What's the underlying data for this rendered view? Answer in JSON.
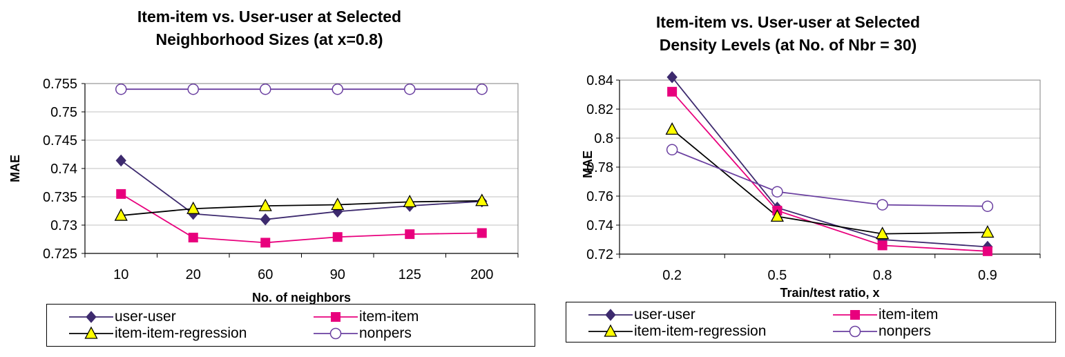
{
  "charts": [
    {
      "title": "Item-item vs. User-user at Selected\nNeighborhood Sizes (at x=0.8)",
      "legend": [
        "user-user",
        "item-item",
        "item-item-regression",
        "nonpers"
      ]
    },
    {
      "title": "Item-item vs. User-user at Selected\nDensity Levels (at No. of Nbr = 30)",
      "legend": [
        "user-user",
        "item-item",
        "item-item-regression",
        "nonpers"
      ]
    }
  ],
  "colors": {
    "user-user": "#3d2a6e",
    "item-item": "#e8007d",
    "item-item-regression": "#000000",
    "nonpers": "#6a3fa0",
    "triangle_fill": "#ffff00",
    "grid": "#c0c0c0"
  },
  "chart_data": [
    {
      "type": "line",
      "title": "Item-item vs. User-user at Selected Neighborhood Sizes (at x=0.8)",
      "xlabel": "No. of neighbors",
      "ylabel": "MAE",
      "categories": [
        "10",
        "20",
        "60",
        "90",
        "125",
        "200"
      ],
      "ylim": [
        0.725,
        0.755
      ],
      "yticks": [
        "0.755",
        "0.75",
        "0.745",
        "0.74",
        "0.735",
        "0.73",
        "0.725"
      ],
      "grid": true,
      "legend_position": "bottom",
      "series": [
        {
          "name": "user-user",
          "marker": "diamond",
          "values": [
            0.7414,
            0.732,
            0.731,
            0.7324,
            0.7334,
            0.7342
          ]
        },
        {
          "name": "item-item",
          "marker": "square",
          "values": [
            0.7355,
            0.7278,
            0.7269,
            0.7279,
            0.7284,
            0.7286
          ]
        },
        {
          "name": "item-item-regression",
          "marker": "triangle",
          "values": [
            0.7317,
            0.7329,
            0.7334,
            0.7336,
            0.7341,
            0.7343
          ]
        },
        {
          "name": "nonpers",
          "marker": "circle",
          "values": [
            0.754,
            0.754,
            0.754,
            0.754,
            0.754,
            0.754
          ]
        }
      ]
    },
    {
      "type": "line",
      "title": "Item-item vs. User-user at Selected Density Levels (at No. of Nbr = 30)",
      "xlabel": "Train/test ratio, x",
      "ylabel": "MAE",
      "categories": [
        "0.2",
        "0.5",
        "0.8",
        "0.9"
      ],
      "ylim": [
        0.72,
        0.84
      ],
      "yticks": [
        "0.84",
        "0.82",
        "0.8",
        "0.78",
        "0.76",
        "0.74",
        "0.72"
      ],
      "grid": true,
      "legend_position": "bottom",
      "series": [
        {
          "name": "user-user",
          "marker": "diamond",
          "values": [
            0.842,
            0.752,
            0.73,
            0.725
          ]
        },
        {
          "name": "item-item",
          "marker": "square",
          "values": [
            0.832,
            0.75,
            0.726,
            0.722
          ]
        },
        {
          "name": "item-item-regression",
          "marker": "triangle",
          "values": [
            0.806,
            0.746,
            0.734,
            0.735
          ]
        },
        {
          "name": "nonpers",
          "marker": "circle",
          "values": [
            0.792,
            0.763,
            0.754,
            0.753
          ]
        }
      ]
    }
  ]
}
